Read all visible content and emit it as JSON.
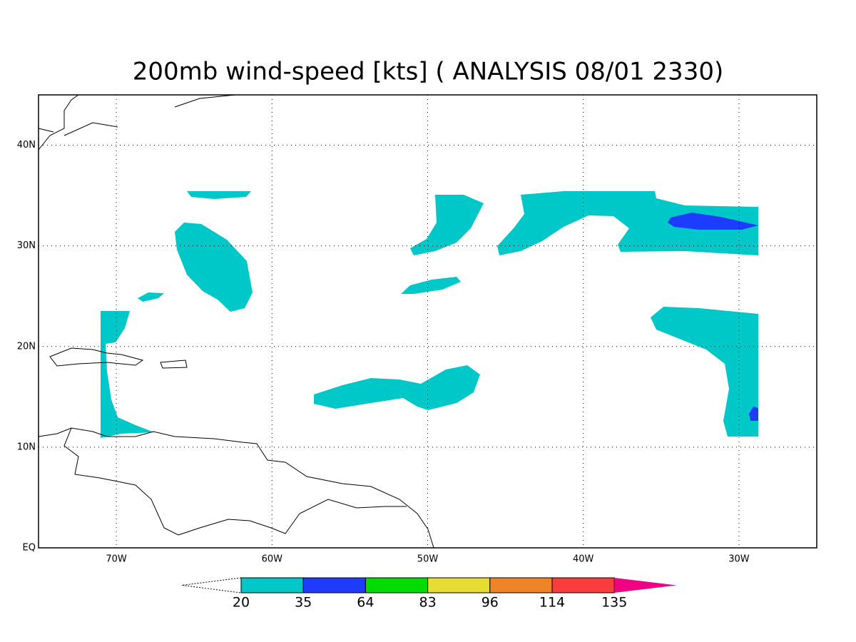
{
  "map": {
    "title": "200mb wind-speed [kts] ( ANALYSIS 08/01 2330)",
    "lon_range": [
      -75,
      -25
    ],
    "lat_range": [
      0,
      45
    ],
    "lon_ticks": [
      {
        "value": -70,
        "label": "70W"
      },
      {
        "value": -60,
        "label": "60W"
      },
      {
        "value": -50,
        "label": "50W"
      },
      {
        "value": -40,
        "label": "40W"
      },
      {
        "value": -30,
        "label": "30W"
      }
    ],
    "lat_ticks": [
      {
        "value": 0,
        "label": "EQ"
      },
      {
        "value": 10,
        "label": "10N"
      },
      {
        "value": 20,
        "label": "20N"
      },
      {
        "value": 30,
        "label": "30N"
      },
      {
        "value": 40,
        "label": "40N"
      }
    ],
    "grid": true,
    "colorbar": {
      "levels": [
        20,
        35,
        64,
        83,
        96,
        114,
        135
      ],
      "colors": [
        "#00c8c8",
        "#1e3cff",
        "#00dc00",
        "#e6dc32",
        "#f08228",
        "#fa3c3c",
        "#f00082"
      ]
    }
  }
}
